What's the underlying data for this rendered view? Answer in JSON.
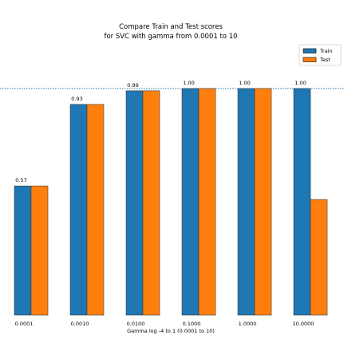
{
  "chart_data": {
    "type": "bar",
    "title_line1": "Compare Train and Test scores",
    "title_line2": "for SVC with gamma from 0.0001 to 10",
    "xlabel": "Gamma log -4 to 1 (0.0001 to 10)",
    "ylabel": "",
    "categories": [
      "0.0001",
      "0.0010",
      "0.0100",
      "0.1000",
      "1.0000",
      "10.0000"
    ],
    "series": [
      {
        "name": "Train",
        "values": [
          0.57,
          0.93,
          0.99,
          1.0,
          1.0,
          1.0
        ],
        "color": "#1f77b4"
      },
      {
        "name": "Test",
        "values": [
          0.57,
          0.93,
          0.99,
          1.0,
          1.0,
          0.51
        ],
        "color": "#ff7f0e"
      }
    ],
    "data_labels": [
      "0.57",
      "0.93",
      "0.99",
      "1.00",
      "1.00",
      "1.00"
    ],
    "ylim": [
      0,
      1.0
    ],
    "reference_line": 1.0,
    "legend_position": "top-right",
    "grid": false
  }
}
